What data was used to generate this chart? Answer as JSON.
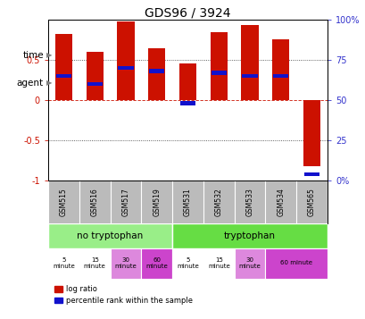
{
  "title": "GDS96 / 3924",
  "samples": [
    "GSM515",
    "GSM516",
    "GSM517",
    "GSM519",
    "GSM531",
    "GSM532",
    "GSM533",
    "GSM534",
    "GSM565"
  ],
  "log_ratio": [
    0.82,
    0.6,
    0.98,
    0.65,
    0.46,
    0.85,
    0.93,
    0.76,
    -0.82
  ],
  "percentile_scaled": [
    0.3,
    0.2,
    0.4,
    0.36,
    -0.04,
    0.34,
    0.3,
    0.3,
    -0.92
  ],
  "ylim": [
    -1,
    1
  ],
  "bar_color": "#cc1100",
  "percentile_color": "#1111cc",
  "bg_color": "#ffffff",
  "plot_bg": "#ffffff",
  "dotted_color": "#333333",
  "red_dashed_color": "#cc1100",
  "sample_bg": "#bbbbbb",
  "agent_no_tryp_color": "#99ee88",
  "agent_tryp_color": "#66dd44",
  "time_white_color": "#ffffff",
  "time_pink_color": "#dd88dd",
  "time_magenta_color": "#cc44cc",
  "left_label_color": "#cc1100",
  "right_label_color": "#3333cc",
  "title_fontsize": 10,
  "bar_width": 0.55
}
